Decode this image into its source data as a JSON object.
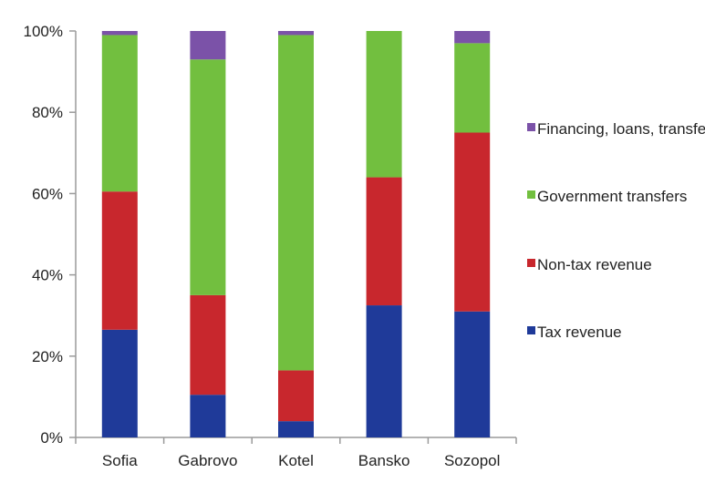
{
  "chart_data": {
    "type": "bar",
    "stacked": true,
    "percent": true,
    "categories": [
      "Sofia",
      "Gabrovo",
      "Kotel",
      "Bansko",
      "Sozopol"
    ],
    "series": [
      {
        "name": "Tax revenue",
        "color": "#1f3a99",
        "values": [
          26.5,
          10.5,
          4,
          32.5,
          31
        ]
      },
      {
        "name": "Non-tax revenue",
        "color": "#c8272d",
        "values": [
          34,
          24.5,
          12.5,
          31.5,
          44
        ]
      },
      {
        "name": "Government transfers",
        "color": "#72bf3f",
        "values": [
          38.5,
          58,
          82.5,
          36,
          22
        ]
      },
      {
        "name": "Financing, loans, transfers",
        "color": "#7b52a8",
        "values": [
          1,
          7,
          1,
          0,
          3
        ]
      }
    ],
    "ylim": [
      0,
      100
    ],
    "yticks": [
      "0%",
      "20%",
      "40%",
      "60%",
      "80%",
      "100%"
    ],
    "grid": false,
    "legend_position": "right"
  }
}
